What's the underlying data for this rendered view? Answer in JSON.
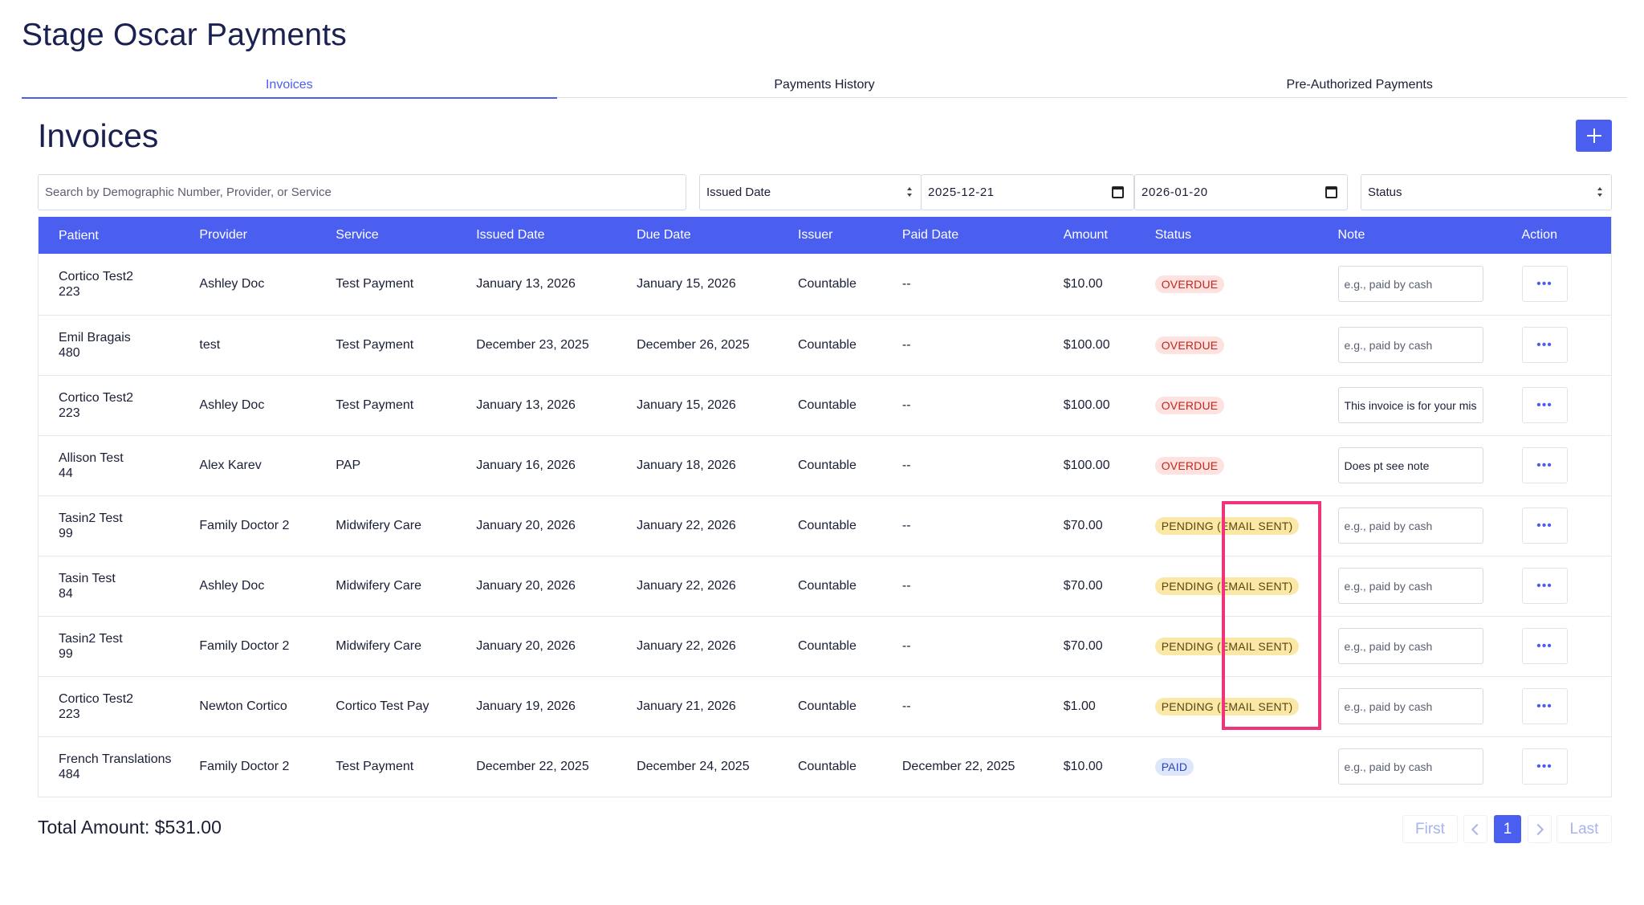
{
  "page_title": "Stage Oscar Payments",
  "tabs": [
    {
      "label": "Invoices",
      "active": true
    },
    {
      "label": "Payments History",
      "active": false
    },
    {
      "label": "Pre-Authorized Payments",
      "active": false
    }
  ],
  "section_title": "Invoices",
  "add_button_icon": "plus-icon",
  "filters": {
    "search_placeholder": "Search by Demographic Number, Provider, or Service",
    "date_type": "Issued Date",
    "date_from": "2025-12-21",
    "date_to": "2026-01-20",
    "status": "Status"
  },
  "columns": [
    "Patient",
    "Provider",
    "Service",
    "Issued Date",
    "Due Date",
    "Issuer",
    "Paid Date",
    "Amount",
    "Status",
    "Note",
    "Action"
  ],
  "rows": [
    {
      "patient_name": "Cortico Test2",
      "patient_id": "223",
      "provider": "Ashley Doc",
      "service": "Test Payment",
      "issued": "January 13, 2026",
      "due": "January 15, 2026",
      "issuer": "Countable",
      "paid": "--",
      "amount": "$10.00",
      "status": "OVERDUE",
      "status_type": "overdue",
      "note_value": "",
      "note_placeholder": "e.g., paid by cash"
    },
    {
      "patient_name": "Emil Bragais",
      "patient_id": "480",
      "provider": "test",
      "service": "Test Payment",
      "issued": "December 23, 2025",
      "due": "December 26, 2025",
      "issuer": "Countable",
      "paid": "--",
      "amount": "$100.00",
      "status": "OVERDUE",
      "status_type": "overdue",
      "note_value": "",
      "note_placeholder": "e.g., paid by cash"
    },
    {
      "patient_name": "Cortico Test2",
      "patient_id": "223",
      "provider": "Ashley Doc",
      "service": "Test Payment",
      "issued": "January 13, 2026",
      "due": "January 15, 2026",
      "issuer": "Countable",
      "paid": "--",
      "amount": "$100.00",
      "status": "OVERDUE",
      "status_type": "overdue",
      "note_value": "This invoice is for your mis",
      "note_placeholder": "e.g., paid by cash"
    },
    {
      "patient_name": "Allison Test",
      "patient_id": "44",
      "provider": "Alex Karev",
      "service": "PAP",
      "issued": "January 16, 2026",
      "due": "January 18, 2026",
      "issuer": "Countable",
      "paid": "--",
      "amount": "$100.00",
      "status": "OVERDUE",
      "status_type": "overdue",
      "note_value": "Does pt see note",
      "note_placeholder": "e.g., paid by cash"
    },
    {
      "patient_name": "Tasin2 Test",
      "patient_id": "99",
      "provider": "Family Doctor 2",
      "service": "Midwifery Care",
      "issued": "January 20, 2026",
      "due": "January 22, 2026",
      "issuer": "Countable",
      "paid": "--",
      "amount": "$70.00",
      "status": "PENDING (EMAIL SENT)",
      "status_type": "pending",
      "note_value": "",
      "note_placeholder": "e.g., paid by cash"
    },
    {
      "patient_name": "Tasin Test",
      "patient_id": "84",
      "provider": "Ashley Doc",
      "service": "Midwifery Care",
      "issued": "January 20, 2026",
      "due": "January 22, 2026",
      "issuer": "Countable",
      "paid": "--",
      "amount": "$70.00",
      "status": "PENDING (EMAIL SENT)",
      "status_type": "pending",
      "note_value": "",
      "note_placeholder": "e.g., paid by cash"
    },
    {
      "patient_name": "Tasin2 Test",
      "patient_id": "99",
      "provider": "Family Doctor 2",
      "service": "Midwifery Care",
      "issued": "January 20, 2026",
      "due": "January 22, 2026",
      "issuer": "Countable",
      "paid": "--",
      "amount": "$70.00",
      "status": "PENDING (EMAIL SENT)",
      "status_type": "pending",
      "note_value": "",
      "note_placeholder": "e.g., paid by cash"
    },
    {
      "patient_name": "Cortico Test2",
      "patient_id": "223",
      "provider": "Newton Cortico",
      "service": "Cortico Test Pay",
      "issued": "January 19, 2026",
      "due": "January 21, 2026",
      "issuer": "Countable",
      "paid": "--",
      "amount": "$1.00",
      "status": "PENDING (EMAIL SENT)",
      "status_type": "pending",
      "note_value": "",
      "note_placeholder": "e.g., paid by cash"
    },
    {
      "patient_name": "French Translations",
      "patient_id": "484",
      "provider": "Family Doctor 2",
      "service": "Test Payment",
      "issued": "December 22, 2025",
      "due": "December 24, 2025",
      "issuer": "Countable",
      "paid": "December 22, 2025",
      "amount": "$10.00",
      "status": "PAID",
      "status_type": "paid",
      "note_value": "",
      "note_placeholder": "e.g., paid by cash"
    }
  ],
  "action_icon": "ellipsis-icon",
  "total_label": "Total Amount: $531.00",
  "pagination": {
    "first": "First",
    "current": "1",
    "last": "Last"
  },
  "colors": {
    "accent": "#4a5ef0",
    "overdue_bg": "#fde2e0",
    "overdue_text": "#c0261d",
    "pending_bg": "#fbe7a6",
    "paid_bg": "#dde6fb",
    "highlight": "#f0337a"
  }
}
